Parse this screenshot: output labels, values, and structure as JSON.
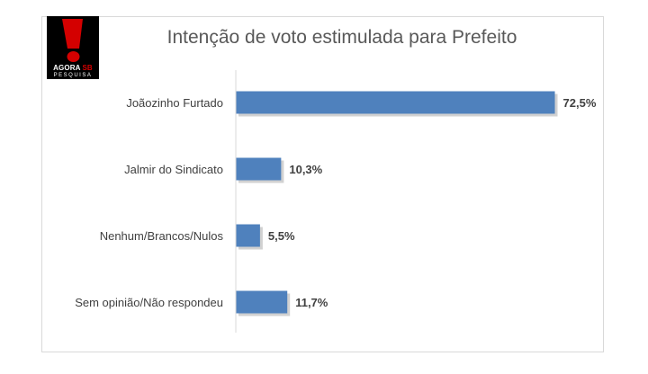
{
  "logo": {
    "line1_a": "AGORA",
    "line1_b": "SB",
    "line2": "PESQUISA",
    "red": "#d40000"
  },
  "chart_data": {
    "type": "bar",
    "orientation": "horizontal",
    "title": "Intenção de voto estimulada para Prefeito",
    "categories": [
      "Joãozinho Furtado",
      "Jalmir do Sindicato",
      "Nenhum/Brancos/Nulos",
      "Sem opinião/Não respondeu"
    ],
    "values": [
      72.5,
      10.3,
      5.5,
      11.7
    ],
    "value_labels": [
      "72,5%",
      "10,3%",
      "5,5%",
      "11,7%"
    ],
    "xlabel": "",
    "ylabel": "",
    "xlim": [
      0,
      100
    ],
    "grid": false,
    "legend": "none",
    "bar_color": "#4f81bd"
  }
}
